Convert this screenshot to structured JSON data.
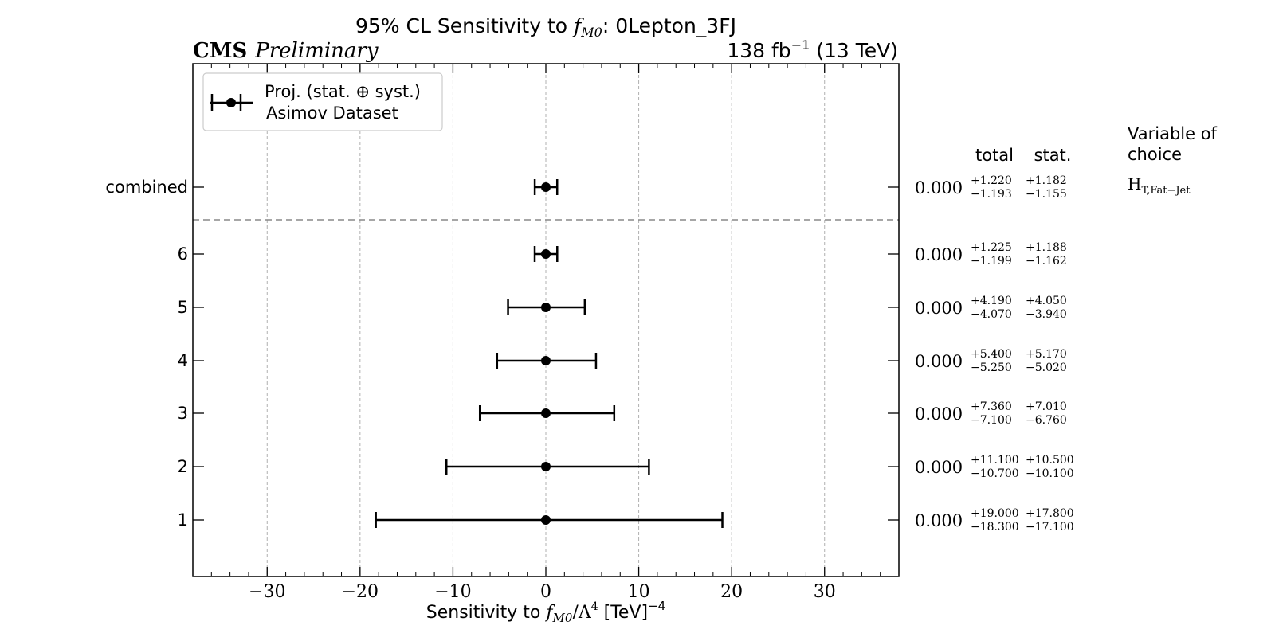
{
  "header": {
    "title_prefix": "95% CL Sensitivity to ",
    "title_symbol": "f",
    "title_symbol_sub": "M0",
    "title_suffix": ": 0Lepton_3FJ",
    "cms": "CMS",
    "preliminary": "Preliminary",
    "lumi_value": "138 fb",
    "lumi_exp": "−1",
    "lumi_energy": " (13 TeV)"
  },
  "legend": {
    "line1": "Proj. (stat. ⊕ syst.)",
    "line2": "Asimov Dataset"
  },
  "columns": {
    "total": "total",
    "stat": "stat.",
    "variable_line1": "Variable of",
    "variable_line2": "choice",
    "variable_value": "H",
    "variable_value_sub": "T,Fat−Jet"
  },
  "xaxis": {
    "label_prefix": "Sensitivity to ",
    "label_symbol": "f",
    "label_symbol_sub": "M0",
    "label_mid": "/Λ",
    "label_mid_sup": "4",
    "label_suffix": " [TeV]",
    "label_suffix_sup": "−4"
  },
  "chart_data": {
    "type": "scatter",
    "orientation": "horizontal-errorbar",
    "xlim": [
      -38,
      38
    ],
    "xticks": [
      -30,
      -20,
      -10,
      0,
      10,
      20,
      30
    ],
    "xtick_labels": [
      "−30",
      "−20",
      "−10",
      "0",
      "10",
      "20",
      "30"
    ],
    "grid": "x, dashed",
    "legend_position": "top-left",
    "rows": [
      {
        "label": "combined",
        "central": 0.0,
        "central_label": "0.000",
        "total_up": 1.22,
        "total_down": 1.193,
        "total_up_label": "+1.220",
        "total_down_label": "−1.193",
        "stat_up_label": "+1.182",
        "stat_down_label": "−1.155",
        "show_variable": true
      },
      {
        "label": "6",
        "central": 0.0,
        "central_label": "0.000",
        "total_up": 1.225,
        "total_down": 1.199,
        "total_up_label": "+1.225",
        "total_down_label": "−1.199",
        "stat_up_label": "+1.188",
        "stat_down_label": "−1.162"
      },
      {
        "label": "5",
        "central": 0.0,
        "central_label": "0.000",
        "total_up": 4.19,
        "total_down": 4.07,
        "total_up_label": "+4.190",
        "total_down_label": "−4.070",
        "stat_up_label": "+4.050",
        "stat_down_label": "−3.940"
      },
      {
        "label": "4",
        "central": 0.0,
        "central_label": "0.000",
        "total_up": 5.4,
        "total_down": 5.25,
        "total_up_label": "+5.400",
        "total_down_label": "−5.250",
        "stat_up_label": "+5.170",
        "stat_down_label": "−5.020"
      },
      {
        "label": "3",
        "central": 0.0,
        "central_label": "0.000",
        "total_up": 7.36,
        "total_down": 7.1,
        "total_up_label": "+7.360",
        "total_down_label": "−7.100",
        "stat_up_label": "+7.010",
        "stat_down_label": "−6.760"
      },
      {
        "label": "2",
        "central": 0.0,
        "central_label": "0.000",
        "total_up": 11.1,
        "total_down": 10.7,
        "total_up_label": "+11.100",
        "total_down_label": "−10.700",
        "stat_up_label": "+10.500",
        "stat_down_label": "−10.100"
      },
      {
        "label": "1",
        "central": 0.0,
        "central_label": "0.000",
        "total_up": 19.0,
        "total_down": 18.3,
        "total_up_label": "+19.000",
        "total_down_label": "−18.300",
        "stat_up_label": "+17.800",
        "stat_down_label": "−17.100"
      }
    ],
    "colors": {
      "marker": "#000000",
      "grid": "#b0b0b0",
      "separator": "#888888"
    }
  }
}
